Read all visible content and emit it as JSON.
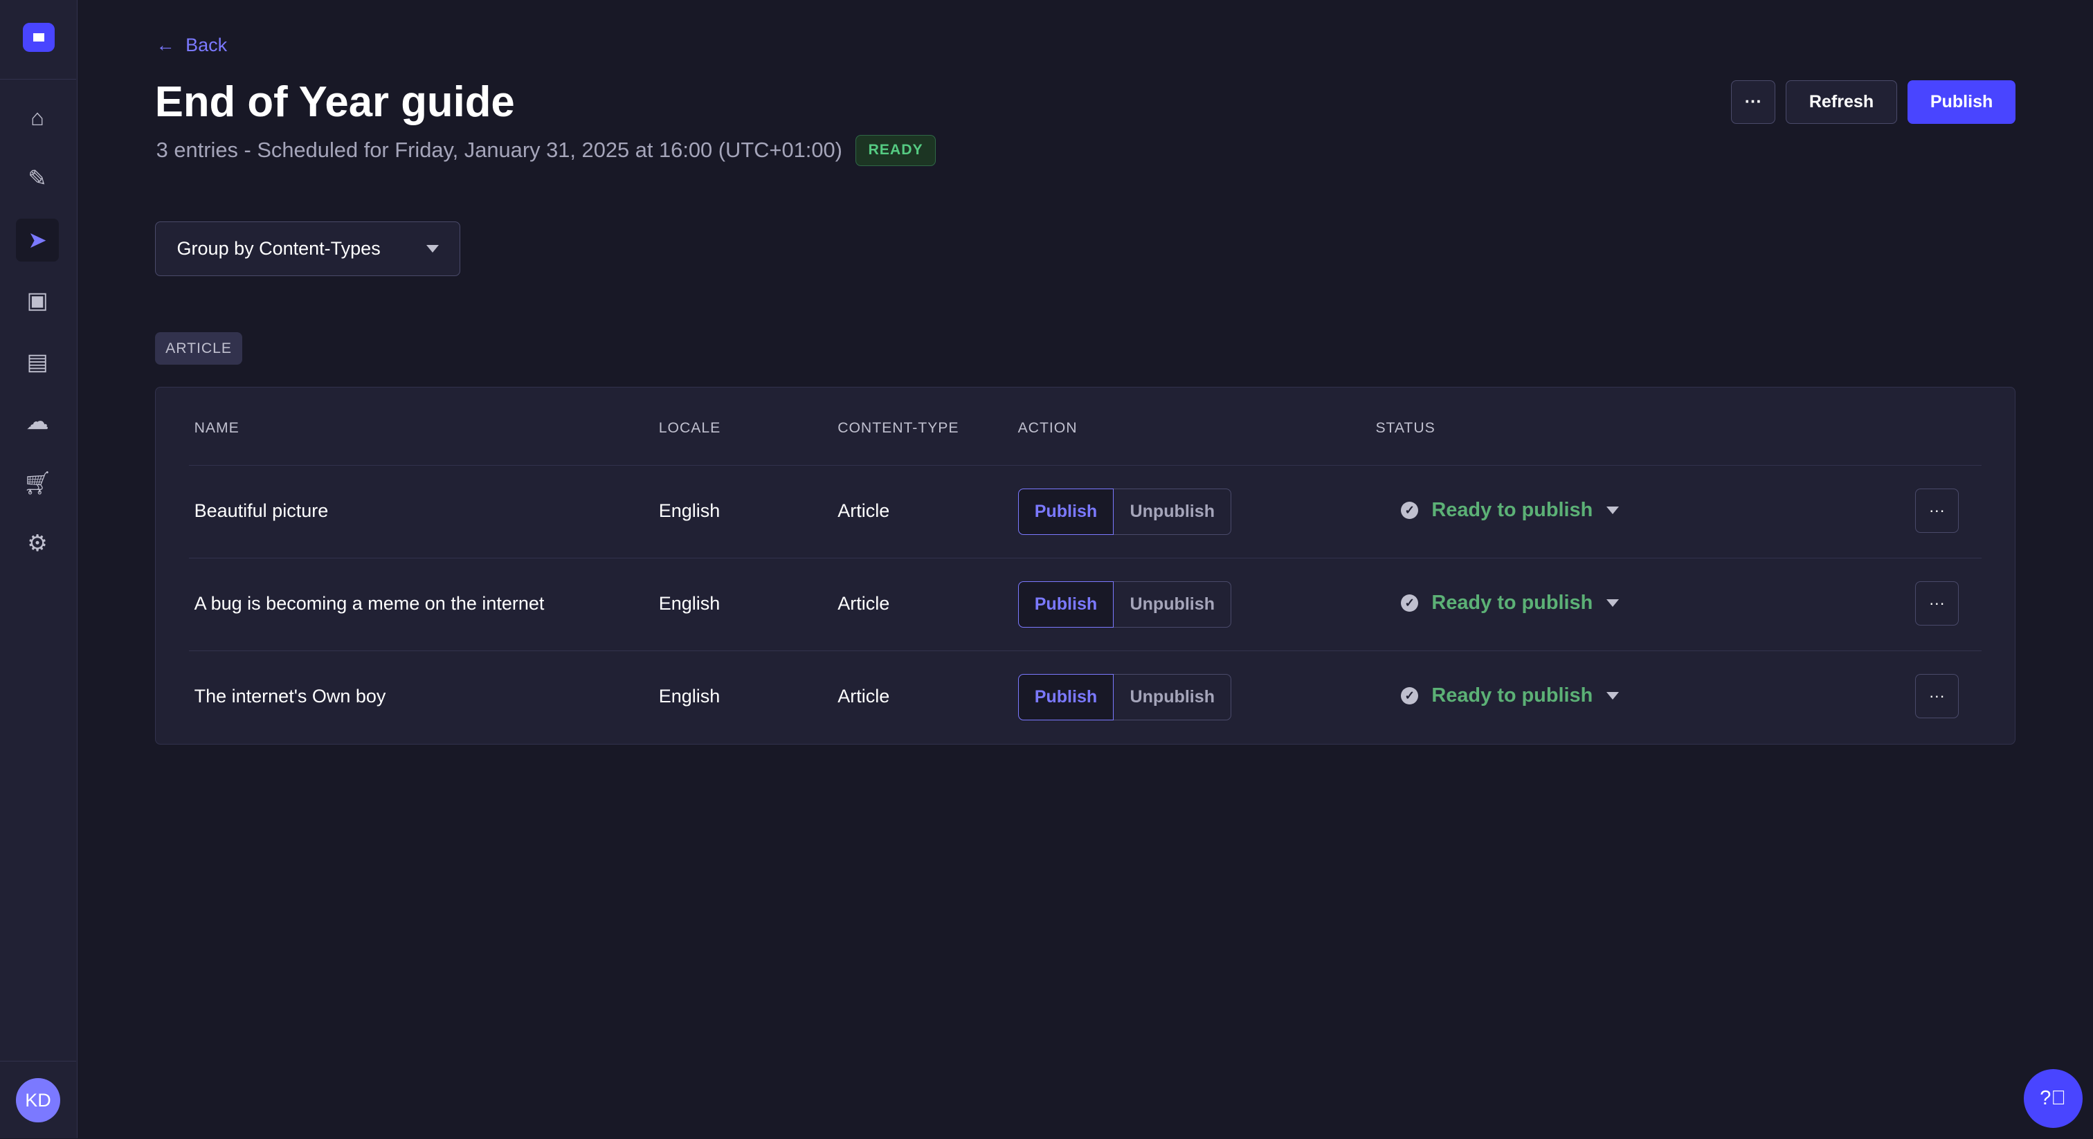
{
  "sidebar": {
    "avatar_initials": "KD",
    "items": [
      {
        "icon": "home-icon"
      },
      {
        "icon": "feather-icon"
      },
      {
        "icon": "paper-plane-icon",
        "active": true
      },
      {
        "icon": "media-icon"
      },
      {
        "icon": "layout-icon"
      },
      {
        "icon": "cloud-icon"
      },
      {
        "icon": "cart-icon"
      },
      {
        "icon": "gear-icon"
      }
    ]
  },
  "header": {
    "back_label": "Back",
    "title": "End of Year guide",
    "subtitle": "3 entries - Scheduled for Friday, January 31, 2025 at 16:00 (UTC+01:00)",
    "badge": "READY",
    "more_label": "···",
    "refresh_label": "Refresh",
    "publish_label": "Publish"
  },
  "group_by": {
    "selected": "Group by Content-Types"
  },
  "group_tag": "ARTICLE",
  "table": {
    "columns": [
      "NAME",
      "LOCALE",
      "CONTENT-TYPE",
      "ACTION",
      "STATUS"
    ],
    "rows": [
      {
        "name": "Beautiful picture",
        "locale": "English",
        "content_type": "Article",
        "publish": "Publish",
        "unpublish": "Unpublish",
        "status": "Ready to publish"
      },
      {
        "name": "A bug is becoming a meme on the internet",
        "locale": "English",
        "content_type": "Article",
        "publish": "Publish",
        "unpublish": "Unpublish",
        "status": "Ready to publish"
      },
      {
        "name": "The internet's Own boy",
        "locale": "English",
        "content_type": "Article",
        "publish": "Publish",
        "unpublish": "Unpublish",
        "status": "Ready to publish"
      }
    ]
  },
  "colors": {
    "primary": "#4945ff",
    "ready_green": "#5cb176",
    "background": "#181826"
  }
}
